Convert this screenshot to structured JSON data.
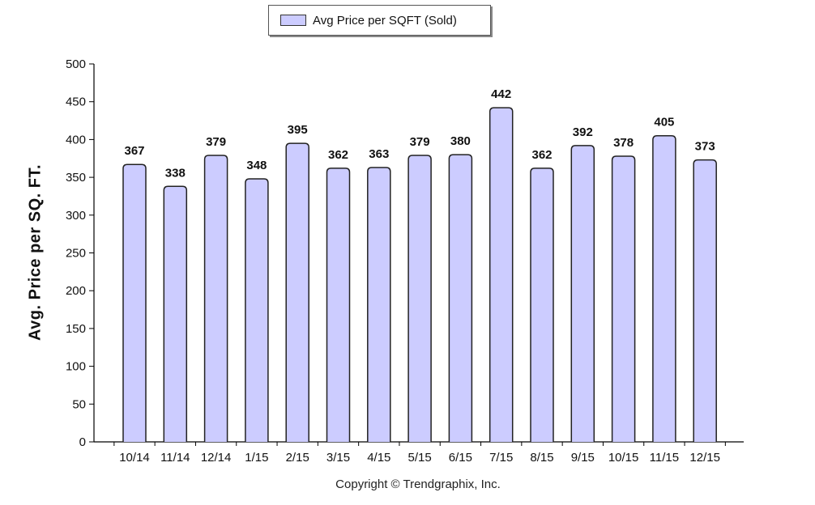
{
  "legend": {
    "label": "Avg Price per SQFT (Sold)"
  },
  "footer": {
    "copyright": "Copyright © Trendgraphix, Inc."
  },
  "colors": {
    "bar_fill": "#ccccff",
    "bar_stroke": "#222222",
    "axis": "#000000"
  },
  "chart_data": {
    "type": "bar",
    "title": "",
    "xlabel": "",
    "ylabel": "Avg. Price per SQ. FT.",
    "categories": [
      "10/14",
      "11/14",
      "12/14",
      "1/15",
      "2/15",
      "3/15",
      "4/15",
      "5/15",
      "6/15",
      "7/15",
      "8/15",
      "9/15",
      "10/15",
      "11/15",
      "12/15"
    ],
    "series": [
      {
        "name": "Avg Price per SQFT (Sold)",
        "values": [
          367,
          338,
          379,
          348,
          395,
          362,
          363,
          379,
          380,
          442,
          362,
          392,
          378,
          405,
          373
        ]
      }
    ],
    "ylim": [
      0,
      500
    ],
    "yticks": [
      0,
      50,
      100,
      150,
      200,
      250,
      300,
      350,
      400,
      450,
      500
    ],
    "grid": false,
    "legend_position": "top-center",
    "data_labels": true
  }
}
